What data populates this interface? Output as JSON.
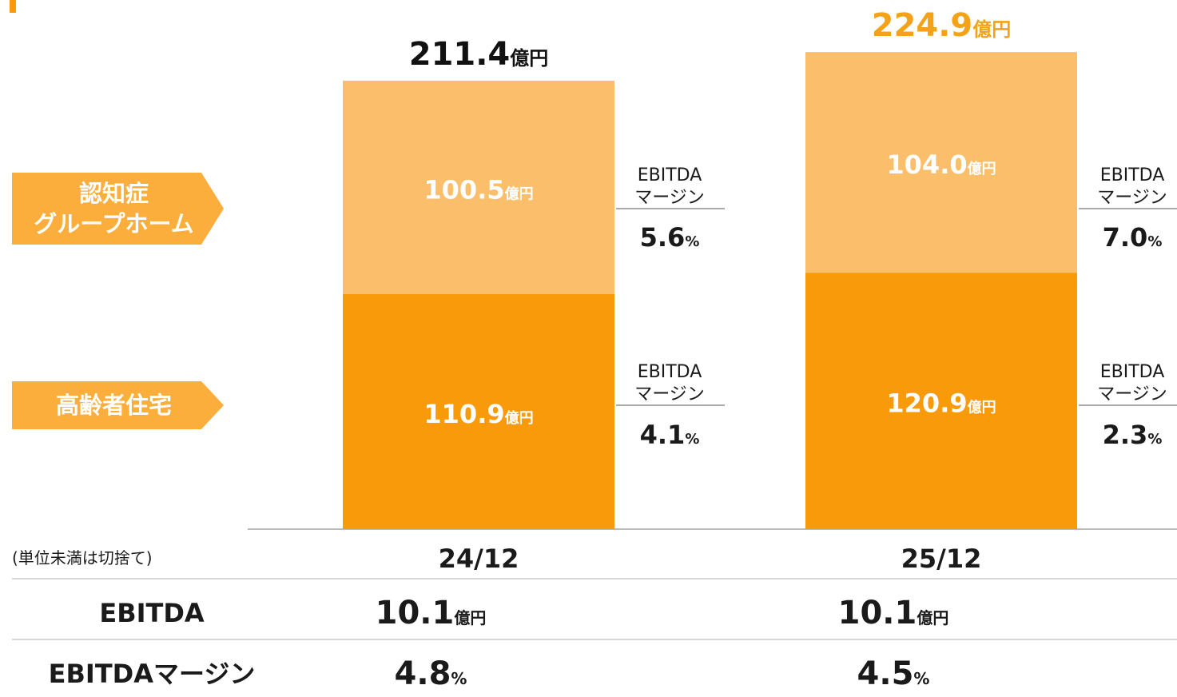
{
  "chart_data": {
    "type": "stacked_bar",
    "categories": [
      "24/12",
      "25/12"
    ],
    "unit": "億円",
    "percent_unit": "%",
    "series": [
      {
        "name": "高齢者住宅",
        "color": "#f99a0b",
        "values": [
          110.9,
          120.9
        ],
        "value_labels": [
          "110.9",
          "120.9"
        ],
        "margins": [
          4.1,
          2.3
        ],
        "margin_labels": [
          "4.1",
          "2.3"
        ]
      },
      {
        "name": "認知症\nグループホーム",
        "color": "#fbbe6a",
        "values": [
          100.5,
          104.0
        ],
        "value_labels": [
          "100.5",
          "104.0"
        ],
        "margins": [
          5.6,
          7.0
        ],
        "margin_labels": [
          "5.6",
          "7.0"
        ]
      }
    ],
    "totals": [
      211.4,
      224.9
    ],
    "total_colors": [
      "#111111",
      "#f5a21b"
    ],
    "margin_caption": [
      "EBITDA",
      "マージン"
    ],
    "label_color": "#fbae3c",
    "table": {
      "note": "(単位未満は切捨て)",
      "rows": [
        {
          "label": "EBITDA",
          "values": [
            10.1,
            10.1
          ],
          "unit": "億円"
        },
        {
          "label": "EBITDAマージン",
          "values": [
            4.8,
            4.5
          ],
          "unit": "%"
        }
      ]
    }
  }
}
